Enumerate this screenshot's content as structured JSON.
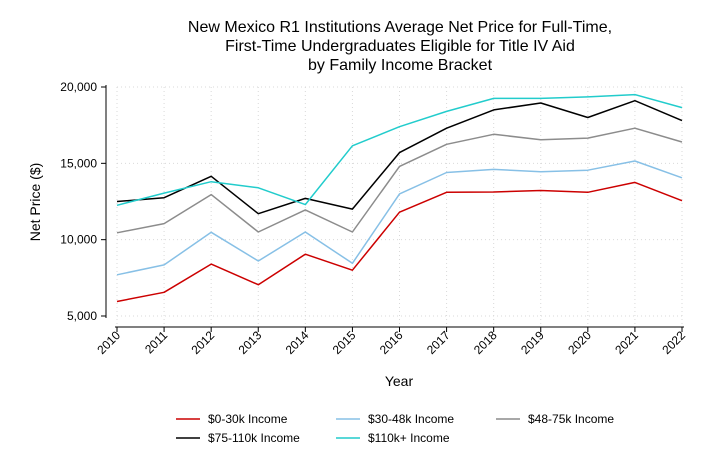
{
  "chart_data": {
    "type": "line",
    "title_lines": [
      "New Mexico R1 Institutions Average Net Price for Full-Time,",
      "First-Time Undergraduates Eligible for Title IV Aid",
      "by Family Income Bracket"
    ],
    "xlabel": "Year",
    "ylabel": "Net Price ($)",
    "x": [
      "2010",
      "2011",
      "2012",
      "2013",
      "2014",
      "2015",
      "2016",
      "2017",
      "2018",
      "2019",
      "2020",
      "2021",
      "2022"
    ],
    "ylim": [
      5000,
      20000
    ],
    "yticks": [
      5000,
      10000,
      15000,
      20000
    ],
    "ytick_labels": [
      "5,000",
      "10,000",
      "15,000",
      "20,000"
    ],
    "grid": true,
    "legend_position": "bottom",
    "series": [
      {
        "name": "$0-30k Income",
        "color": "#cc0000",
        "values": [
          5950,
          6550,
          8400,
          7050,
          9050,
          8000,
          11800,
          13100,
          13120,
          13220,
          13100,
          13750,
          12550
        ]
      },
      {
        "name": "$30-48k Income",
        "color": "#87c0e6",
        "values": [
          7700,
          8350,
          10480,
          8600,
          10500,
          8450,
          13000,
          14400,
          14600,
          14450,
          14550,
          15150,
          14050
        ]
      },
      {
        "name": "$48-75k Income",
        "color": "#8c8c8c",
        "values": [
          10450,
          11050,
          12950,
          10500,
          11950,
          10500,
          14800,
          16250,
          16900,
          16550,
          16650,
          17300,
          16400
        ]
      },
      {
        "name": "$75-110k Income",
        "color": "#000000",
        "values": [
          12500,
          12750,
          14150,
          11700,
          12700,
          12000,
          15700,
          17300,
          18500,
          18950,
          18000,
          19100,
          17800
        ]
      },
      {
        "name": "$110k+ Income",
        "color": "#22cccc",
        "values": [
          12250,
          13050,
          13800,
          13400,
          12300,
          16150,
          17400,
          18400,
          19250,
          19250,
          19350,
          19500,
          18650
        ]
      }
    ]
  }
}
